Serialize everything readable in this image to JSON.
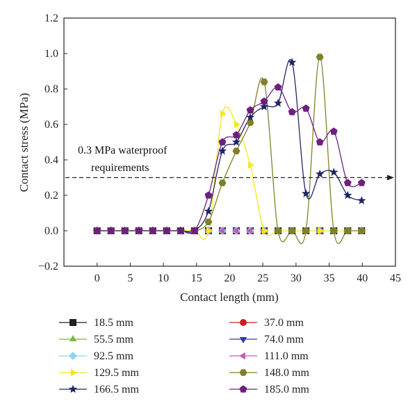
{
  "chart_data": {
    "type": "scatter",
    "xlabel": "Contact length (mm)",
    "ylabel": "Contact stress (MPa)",
    "xlim": [
      -5,
      45
    ],
    "ylim": [
      -0.2,
      1.2
    ],
    "xticks": [
      0,
      5,
      10,
      15,
      20,
      25,
      30,
      35,
      40,
      45
    ],
    "yticks": [
      -0.2,
      0.0,
      0.2,
      0.4,
      0.6,
      0.8,
      1.0,
      1.2
    ],
    "ytick_labels": [
      "−0.2",
      "0.0",
      "0.2",
      "0.4",
      "0.6",
      "0.8",
      "1.0",
      "1.2"
    ],
    "grid": false,
    "legend_position": "bottom",
    "annotation": {
      "line1": "0.3 MPa waterproof",
      "line2": "requirements",
      "threshold": 0.3
    },
    "series": [
      {
        "name": "18.5 mm",
        "color": "#222222",
        "marker": "square",
        "x": [
          0,
          2.1,
          4.2,
          6.3,
          8.4,
          10.5,
          12.6,
          14.7,
          16.8,
          18.9,
          21.0,
          23.1,
          25.2,
          27.3,
          29.4,
          31.5,
          33.6,
          35.7,
          37.8,
          39.9
        ],
        "y": [
          0,
          0,
          0,
          0,
          0,
          0,
          0,
          0,
          0,
          0,
          0,
          0,
          0,
          0,
          0,
          0,
          0,
          0,
          0,
          0
        ]
      },
      {
        "name": "37.0 mm",
        "color": "#cc1f1f",
        "marker": "circle",
        "x": [
          0,
          2.1,
          4.2,
          6.3,
          8.4,
          10.5,
          12.6,
          14.7,
          16.8,
          18.9,
          21.0,
          23.1,
          25.2,
          27.3,
          29.4,
          31.5,
          33.6,
          35.7,
          37.8,
          39.9
        ],
        "y": [
          0,
          0,
          0,
          0,
          0,
          0,
          0,
          0,
          0,
          0,
          0,
          0,
          0,
          0,
          0,
          0,
          0,
          0,
          0,
          0
        ]
      },
      {
        "name": "55.5 mm",
        "color": "#7ab648",
        "marker": "triangle-up",
        "x": [
          0,
          2.1,
          4.2,
          6.3,
          8.4,
          10.5,
          12.6,
          14.7,
          16.8,
          18.9,
          21.0,
          23.1,
          25.2,
          27.3,
          29.4,
          31.5,
          33.6,
          35.7,
          37.8,
          39.9
        ],
        "y": [
          0,
          0,
          0,
          0,
          0,
          0,
          0,
          0,
          0,
          0,
          0,
          0,
          0,
          0,
          0,
          0,
          0,
          0,
          0,
          0
        ]
      },
      {
        "name": "74.0 mm",
        "color": "#2e3a9e",
        "marker": "triangle-down",
        "x": [
          0,
          2.1,
          4.2,
          6.3,
          8.4,
          10.5,
          12.6,
          14.7,
          16.8,
          18.9,
          21.0,
          23.1,
          25.2,
          27.3,
          29.4,
          31.5,
          33.6,
          35.7,
          37.8,
          39.9
        ],
        "y": [
          0,
          0,
          0,
          0,
          0,
          0,
          0,
          0,
          0,
          0,
          0,
          0,
          0,
          0,
          0,
          0,
          0,
          0,
          0,
          0
        ]
      },
      {
        "name": "92.5 mm",
        "color": "#8fd3f0",
        "marker": "diamond",
        "x": [
          0,
          2.1,
          4.2,
          6.3,
          8.4,
          10.5,
          12.6,
          14.7,
          16.8,
          18.9,
          21.0,
          23.1,
          25.2,
          27.3,
          29.4,
          31.5,
          33.6,
          35.7,
          37.8,
          39.9
        ],
        "y": [
          0,
          0,
          0,
          0,
          0,
          0,
          0,
          0,
          0,
          0,
          0,
          0,
          0,
          0,
          0,
          0,
          0,
          0,
          0,
          0
        ]
      },
      {
        "name": "111.0 mm",
        "color": "#c05bbf",
        "marker": "triangle-left",
        "x": [
          0,
          2.1,
          4.2,
          6.3,
          8.4,
          10.5,
          12.6,
          14.7,
          16.8,
          18.9,
          21.0,
          23.1,
          25.2,
          27.3,
          29.4,
          31.5,
          33.6,
          35.7,
          37.8,
          39.9
        ],
        "y": [
          0,
          0,
          0,
          0,
          0,
          0,
          0,
          0,
          0,
          0,
          0,
          0,
          0,
          0,
          0,
          0,
          0,
          0,
          0,
          0
        ]
      },
      {
        "name": "129.5 mm",
        "color": "#f2e81a",
        "marker": "triangle-right",
        "x": [
          0,
          2.1,
          4.2,
          6.3,
          8.4,
          10.5,
          12.6,
          14.7,
          16.8,
          18.9,
          21.0,
          23.1,
          25.2,
          27.3,
          29.4,
          31.5,
          33.6,
          35.7,
          37.8,
          39.9
        ],
        "y": [
          0,
          0,
          0,
          0,
          0,
          0,
          0,
          0,
          0,
          0.66,
          0.6,
          0.37,
          0,
          0,
          0,
          0,
          0,
          0,
          0,
          0
        ]
      },
      {
        "name": "148.0 mm",
        "color": "#80802a",
        "marker": "hexagon",
        "x": [
          0,
          2.1,
          4.2,
          6.3,
          8.4,
          10.5,
          12.6,
          14.7,
          16.8,
          18.9,
          21.0,
          23.1,
          25.2,
          27.3,
          29.4,
          31.5,
          33.6,
          35.7,
          37.8,
          39.9
        ],
        "y": [
          0,
          0,
          0,
          0,
          0,
          0,
          0,
          0,
          0.05,
          0.27,
          0.45,
          0.61,
          0.84,
          0,
          0,
          0,
          0.98,
          0,
          0,
          0
        ]
      },
      {
        "name": "166.5 mm",
        "color": "#1f2467",
        "marker": "star",
        "x": [
          0,
          2.1,
          4.2,
          6.3,
          8.4,
          10.5,
          12.6,
          14.7,
          16.8,
          18.9,
          21.0,
          23.1,
          25.2,
          27.3,
          29.4,
          31.5,
          33.6,
          35.7,
          37.8,
          39.9
        ],
        "y": [
          0,
          0,
          0,
          0,
          0,
          0,
          0,
          0,
          0.11,
          0.45,
          0.5,
          0.64,
          0.7,
          0.72,
          0.95,
          0.21,
          0.32,
          0.33,
          0.2,
          0.17
        ]
      },
      {
        "name": "185.0 mm",
        "color": "#6d1f7e",
        "marker": "pentagon",
        "x": [
          0,
          2.1,
          4.2,
          6.3,
          8.4,
          10.5,
          12.6,
          14.7,
          16.8,
          18.9,
          21.0,
          23.1,
          25.2,
          27.3,
          29.4,
          31.5,
          33.6,
          35.7,
          37.8,
          39.9
        ],
        "y": [
          0,
          0,
          0,
          0,
          0,
          0,
          0,
          0,
          0.2,
          0.5,
          0.54,
          0.68,
          0.73,
          0.81,
          0.67,
          0.69,
          0.5,
          0.56,
          0.27,
          0.27
        ]
      }
    ]
  }
}
